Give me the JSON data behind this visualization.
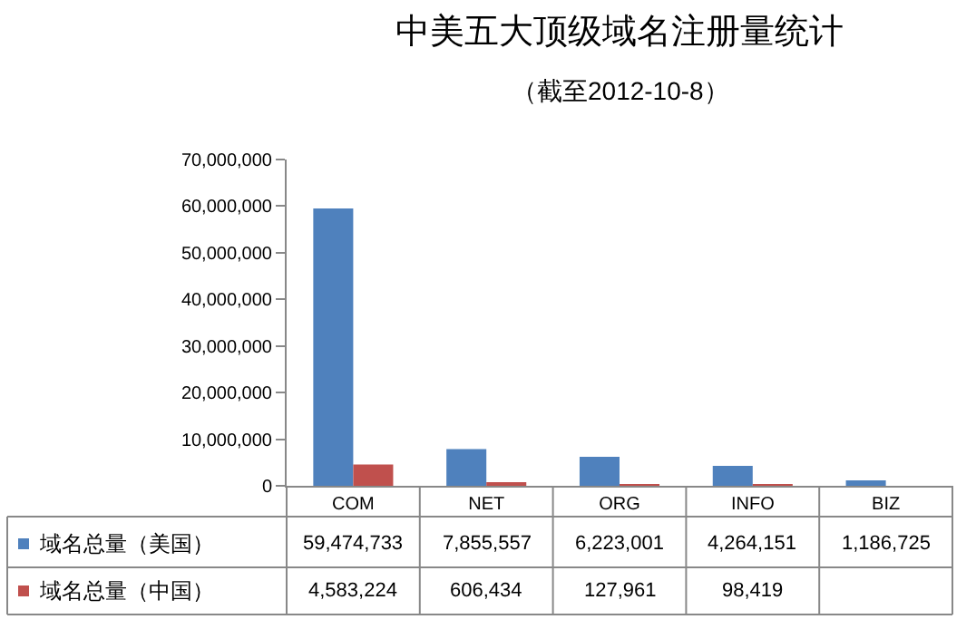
{
  "chart_data": {
    "type": "bar",
    "title": "中美五大顶级域名注册量统计",
    "subtitle": "（截至2012-10-8）",
    "categories": [
      "COM",
      "NET",
      "ORG",
      "INFO",
      "BIZ"
    ],
    "series": [
      {
        "name": "域名总量（美国）",
        "color": "#4f81bd",
        "values": [
          59474733,
          7855557,
          6223001,
          4264151,
          1186725
        ],
        "value_labels": [
          "59,474,733",
          "7,855,557",
          "6,223,001",
          "4,264,151",
          "1,186,725"
        ]
      },
      {
        "name": "域名总量（中国）",
        "color": "#c0504d",
        "values": [
          4583224,
          606434,
          127961,
          98419,
          null
        ],
        "value_labels": [
          "4,583,224",
          "606,434",
          "127,961",
          "98,419",
          null
        ]
      }
    ],
    "ylim": [
      0,
      70000000
    ],
    "yticks": [
      {
        "value": 0,
        "label": "0"
      },
      {
        "value": 10000000,
        "label": "10,000,000"
      },
      {
        "value": 20000000,
        "label": "20,000,000"
      },
      {
        "value": 30000000,
        "label": "30,000,000"
      },
      {
        "value": 40000000,
        "label": "40,000,000"
      },
      {
        "value": 50000000,
        "label": "50,000,000"
      },
      {
        "value": 60000000,
        "label": "60,000,000"
      },
      {
        "value": 70000000,
        "label": "70,000,000"
      }
    ],
    "legend": "bottom left"
  }
}
